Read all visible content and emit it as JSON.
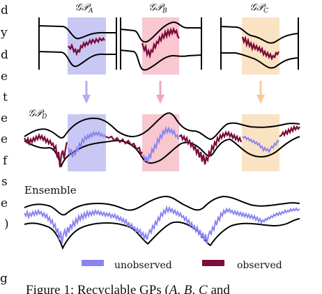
{
  "colors": {
    "blue_band": "#c9c8f4",
    "pink_band": "#f8c7cf",
    "orange_band": "#fae3c3",
    "unobserved": "#8a84f0",
    "observed": "#7b0d3b",
    "envelope": "#000000",
    "arrow_blue": "#aeb2ee",
    "arrow_pink": "#f2a7b5",
    "arrow_orange": "#f6cb98"
  },
  "left_margin_letters": [
    "d",
    "y",
    "d",
    "e",
    "t",
    "e",
    "e",
    "f",
    "s",
    "e",
    ")",
    "g"
  ],
  "labels": {
    "gp_a": "𝒢𝒫",
    "gp_a_sub": "A",
    "gp_b": "𝒢𝒫",
    "gp_b_sub": "B",
    "gp_c": "𝒢𝒫",
    "gp_c_sub": "C",
    "gp_d": "𝒢𝒫",
    "gp_d_sub": "D",
    "ensemble": "Ensemble"
  },
  "legend": {
    "unobserved": "unobserved",
    "observed": "observed"
  },
  "caption": {
    "prefix": "Figure 1: Recyclable GPs (",
    "italic": "A, B, C",
    "suffix": " and"
  }
}
